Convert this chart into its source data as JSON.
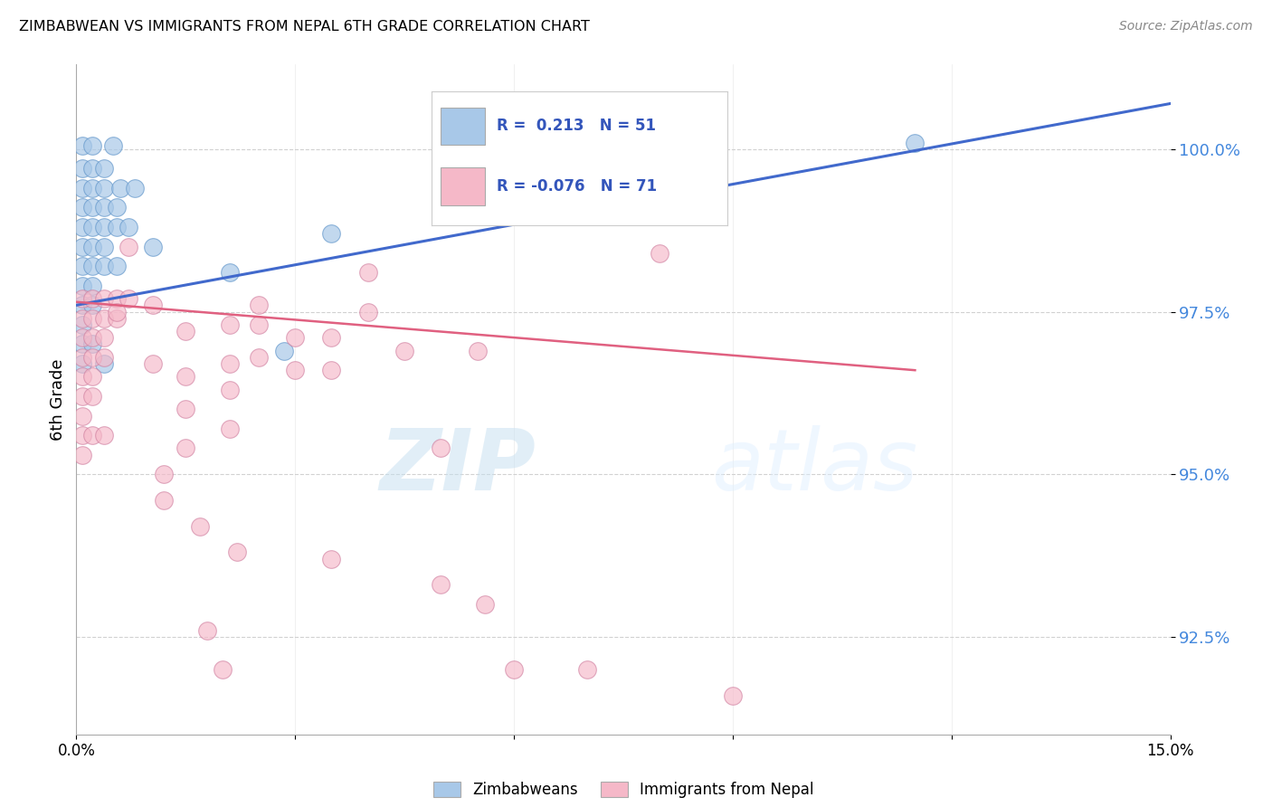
{
  "title": "ZIMBABWEAN VS IMMIGRANTS FROM NEPAL 6TH GRADE CORRELATION CHART",
  "source": "Source: ZipAtlas.com",
  "ylabel": "6th Grade",
  "ylim": [
    91.0,
    101.3
  ],
  "xlim": [
    0.0,
    15.0
  ],
  "yticks": [
    92.5,
    95.0,
    97.5,
    100.0
  ],
  "ytick_labels": [
    "92.5%",
    "95.0%",
    "97.5%",
    "100.0%"
  ],
  "watermark_zip": "ZIP",
  "watermark_atlas": "atlas",
  "legend_R_blue": "0.213",
  "legend_N_blue": "51",
  "legend_R_pink": "-0.076",
  "legend_N_pink": "71",
  "blue_color": "#a8c8e8",
  "pink_color": "#f5b8c8",
  "line_blue": "#4169cc",
  "line_pink": "#e06080",
  "blue_points": [
    [
      0.08,
      100.05
    ],
    [
      0.22,
      100.05
    ],
    [
      0.5,
      100.05
    ],
    [
      0.08,
      99.7
    ],
    [
      0.22,
      99.7
    ],
    [
      0.38,
      99.7
    ],
    [
      0.08,
      99.4
    ],
    [
      0.22,
      99.4
    ],
    [
      0.38,
      99.4
    ],
    [
      0.6,
      99.4
    ],
    [
      0.8,
      99.4
    ],
    [
      0.08,
      99.1
    ],
    [
      0.22,
      99.1
    ],
    [
      0.38,
      99.1
    ],
    [
      0.55,
      99.1
    ],
    [
      0.08,
      98.8
    ],
    [
      0.22,
      98.8
    ],
    [
      0.38,
      98.8
    ],
    [
      0.55,
      98.8
    ],
    [
      0.72,
      98.8
    ],
    [
      0.08,
      98.5
    ],
    [
      0.22,
      98.5
    ],
    [
      0.38,
      98.5
    ],
    [
      0.08,
      98.2
    ],
    [
      0.22,
      98.2
    ],
    [
      0.38,
      98.2
    ],
    [
      0.55,
      98.2
    ],
    [
      0.08,
      97.9
    ],
    [
      0.22,
      97.9
    ],
    [
      0.08,
      97.6
    ],
    [
      0.22,
      97.6
    ],
    [
      0.08,
      97.3
    ],
    [
      0.08,
      97.0
    ],
    [
      0.22,
      97.0
    ],
    [
      0.08,
      96.7
    ],
    [
      0.38,
      96.7
    ],
    [
      1.05,
      98.5
    ],
    [
      2.1,
      98.1
    ],
    [
      2.85,
      96.9
    ],
    [
      3.5,
      98.7
    ],
    [
      11.5,
      100.1
    ]
  ],
  "pink_points": [
    [
      0.08,
      97.7
    ],
    [
      0.22,
      97.7
    ],
    [
      0.38,
      97.7
    ],
    [
      0.55,
      97.7
    ],
    [
      0.72,
      97.7
    ],
    [
      0.08,
      97.4
    ],
    [
      0.22,
      97.4
    ],
    [
      0.38,
      97.4
    ],
    [
      0.55,
      97.4
    ],
    [
      0.08,
      97.1
    ],
    [
      0.22,
      97.1
    ],
    [
      0.38,
      97.1
    ],
    [
      0.08,
      96.8
    ],
    [
      0.22,
      96.8
    ],
    [
      0.38,
      96.8
    ],
    [
      0.08,
      96.5
    ],
    [
      0.22,
      96.5
    ],
    [
      0.08,
      96.2
    ],
    [
      0.22,
      96.2
    ],
    [
      0.08,
      95.9
    ],
    [
      0.08,
      95.6
    ],
    [
      0.22,
      95.6
    ],
    [
      0.08,
      95.3
    ],
    [
      0.38,
      95.6
    ],
    [
      0.55,
      97.5
    ],
    [
      1.05,
      97.6
    ],
    [
      1.05,
      96.7
    ],
    [
      1.5,
      97.2
    ],
    [
      1.5,
      96.5
    ],
    [
      1.5,
      96.0
    ],
    [
      1.5,
      95.4
    ],
    [
      2.1,
      97.3
    ],
    [
      2.1,
      96.7
    ],
    [
      2.1,
      96.3
    ],
    [
      2.1,
      95.7
    ],
    [
      2.5,
      97.3
    ],
    [
      2.5,
      96.8
    ],
    [
      2.5,
      97.6
    ],
    [
      3.0,
      97.1
    ],
    [
      3.0,
      96.6
    ],
    [
      3.5,
      97.1
    ],
    [
      3.5,
      96.6
    ],
    [
      4.0,
      98.1
    ],
    [
      4.0,
      97.5
    ],
    [
      4.5,
      96.9
    ],
    [
      5.0,
      95.4
    ],
    [
      5.5,
      96.9
    ],
    [
      5.6,
      93.0
    ],
    [
      6.0,
      92.0
    ],
    [
      7.0,
      92.0
    ],
    [
      8.0,
      98.4
    ],
    [
      1.2,
      95.0
    ],
    [
      1.2,
      94.6
    ],
    [
      1.7,
      94.2
    ],
    [
      2.2,
      93.8
    ],
    [
      1.8,
      92.6
    ],
    [
      2.0,
      92.0
    ],
    [
      3.5,
      93.7
    ],
    [
      5.0,
      93.3
    ],
    [
      9.0,
      91.6
    ],
    [
      0.72,
      98.5
    ]
  ],
  "blue_line_x": [
    0.0,
    15.0
  ],
  "blue_line_y": [
    97.6,
    100.7
  ],
  "pink_line_x": [
    0.0,
    11.5
  ],
  "pink_line_y": [
    97.65,
    96.6
  ]
}
